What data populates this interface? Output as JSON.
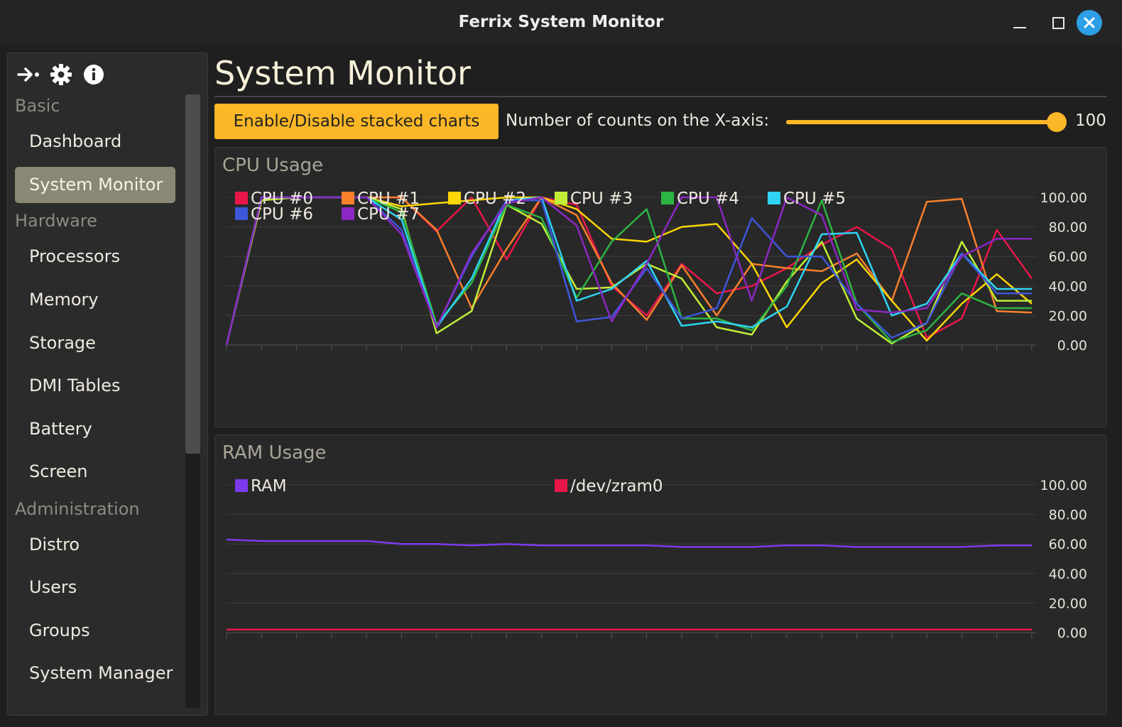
{
  "window": {
    "title": "Ferrix System Monitor",
    "minimize_icon": "minimize-icon",
    "maximize_icon": "maximize-icon",
    "close_icon": "close-icon",
    "close_color": "#2d9fe6"
  },
  "sidebar": {
    "toolbar_icons": [
      "collapse-arrow-icon",
      "gear-icon",
      "info-icon"
    ],
    "sections": {
      "basic": "Basic",
      "hardware": "Hardware",
      "administration": "Administration"
    },
    "items": {
      "dashboard": "Dashboard",
      "system_monitor": "System Monitor",
      "processors": "Processors",
      "memory": "Memory",
      "storage": "Storage",
      "dmi_tables": "DMI Tables",
      "battery": "Battery",
      "screen": "Screen",
      "distro": "Distro",
      "users": "Users",
      "groups": "Groups",
      "system_manager": "System Manager"
    },
    "active_item": "System Monitor"
  },
  "main": {
    "title": "System Monitor",
    "stack_button": "Enable/Disable stacked charts",
    "slider_label": "Number of counts on the X-axis:",
    "slider_value": "100",
    "slider_fraction": 1.0,
    "accent_color": "#fbb726"
  },
  "chart_data": [
    {
      "type": "line",
      "title": "CPU Usage",
      "ylim": [
        0,
        100
      ],
      "y_ticks": [
        "0.00",
        "20.00",
        "40.00",
        "60.00",
        "80.00",
        "100.00"
      ],
      "grid": true,
      "legend_placement": "top-left",
      "x_count": 23,
      "series": [
        {
          "name": "CPU #0",
          "color": "#e8174a",
          "values": [
            0,
            100,
            100,
            100,
            100,
            100,
            77,
            100,
            58,
            100,
            95,
            40,
            20,
            55,
            35,
            40,
            52,
            68,
            80,
            65,
            5,
            18,
            78,
            45
          ]
        },
        {
          "name": "CPU #1",
          "color": "#f7802b",
          "values": [
            0,
            98,
            100,
            100,
            100,
            100,
            78,
            25,
            65,
            100,
            88,
            42,
            17,
            54,
            20,
            55,
            52,
            50,
            62,
            30,
            97,
            99,
            23,
            22
          ]
        },
        {
          "name": "CPU #2",
          "color": "#fcd606",
          "values": [
            0,
            100,
            100,
            100,
            100,
            94,
            96,
            98,
            100,
            100,
            92,
            72,
            70,
            80,
            82,
            55,
            12,
            42,
            58,
            30,
            3,
            28,
            48,
            28
          ]
        },
        {
          "name": "CPU #3",
          "color": "#c0ee37",
          "values": [
            0,
            98,
            100,
            100,
            100,
            92,
            8,
            23,
            95,
            82,
            38,
            39,
            55,
            45,
            12,
            7,
            43,
            70,
            18,
            1,
            15,
            70,
            30,
            30
          ]
        },
        {
          "name": "CPU #4",
          "color": "#2eb443",
          "values": [
            0,
            100,
            100,
            100,
            100,
            90,
            14,
            42,
            95,
            86,
            32,
            70,
            92,
            18,
            18,
            10,
            40,
            98,
            28,
            2,
            10,
            35,
            25,
            25
          ]
        },
        {
          "name": "CPU #5",
          "color": "#2fd4f4",
          "values": [
            0,
            100,
            100,
            100,
            100,
            85,
            12,
            45,
            98,
            100,
            30,
            38,
            57,
            13,
            16,
            12,
            26,
            75,
            76,
            20,
            28,
            62,
            38,
            38
          ]
        },
        {
          "name": "CPU #6",
          "color": "#3e56d8",
          "values": [
            0,
            100,
            100,
            100,
            100,
            78,
            12,
            60,
            98,
            98,
            16,
            19,
            52,
            18,
            25,
            86,
            60,
            60,
            28,
            5,
            15,
            62,
            35,
            35
          ]
        },
        {
          "name": "CPU #7",
          "color": "#8b27c2",
          "values": [
            0,
            100,
            100,
            100,
            100,
            75,
            12,
            62,
            96,
            100,
            81,
            16,
            55,
            100,
            100,
            30,
            100,
            88,
            24,
            22,
            25,
            60,
            72,
            72
          ]
        }
      ]
    },
    {
      "type": "line",
      "title": "RAM Usage",
      "ylim": [
        0,
        100
      ],
      "y_ticks": [
        "0.00",
        "20.00",
        "40.00",
        "60.00",
        "80.00",
        "100.00"
      ],
      "grid": true,
      "legend_placement": "top-left",
      "x_count": 23,
      "series": [
        {
          "name": "RAM",
          "color": "#7c3aed",
          "values": [
            63,
            62,
            62,
            62,
            62,
            60,
            60,
            59,
            60,
            59,
            59,
            59,
            59,
            58,
            58,
            58,
            59,
            59,
            58,
            58,
            58,
            58,
            59,
            59
          ]
        },
        {
          "name": "/dev/zram0",
          "color": "#e8174a",
          "values": [
            2,
            2,
            2,
            2,
            2,
            2,
            2,
            2,
            2,
            2,
            2,
            2,
            2,
            2,
            2,
            2,
            2,
            2,
            2,
            2,
            2,
            2,
            2,
            2
          ]
        }
      ]
    }
  ]
}
